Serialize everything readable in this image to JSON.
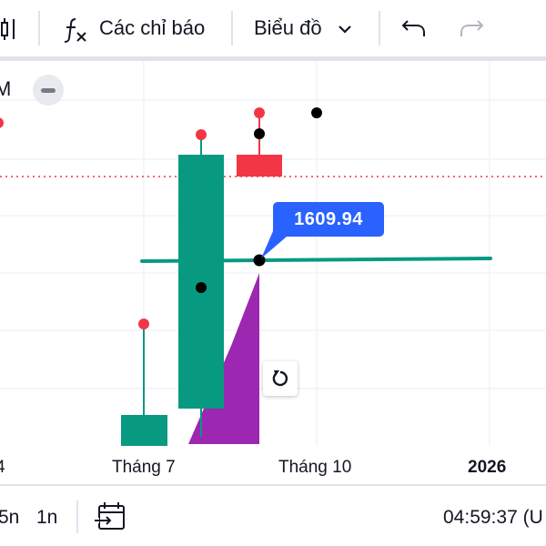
{
  "toolbar": {
    "indicators_label": "Các chỉ báo",
    "chart_type_label": "Biểu đồ",
    "icons": [
      "candles-icon",
      "function-fx-icon",
      "chevron-down-icon",
      "undo-icon",
      "redo-icon"
    ]
  },
  "chart": {
    "legend_symbol": "M",
    "price_label": "1609.94",
    "x_axis_labels": [
      "4",
      "Tháng 7",
      "Tháng 10",
      "2026"
    ],
    "colors": {
      "candle_up": "#089981",
      "candle_down": "#f23645",
      "annotation_fill": "#9c27b0",
      "price_label_bg": "#2962ff",
      "dotted_line": "#f23645"
    }
  },
  "bottombar": {
    "range_5y": "5n",
    "range_1y": "1n",
    "clock": "04:59:37 (U",
    "icons": [
      "calendar-goto-icon"
    ]
  }
}
